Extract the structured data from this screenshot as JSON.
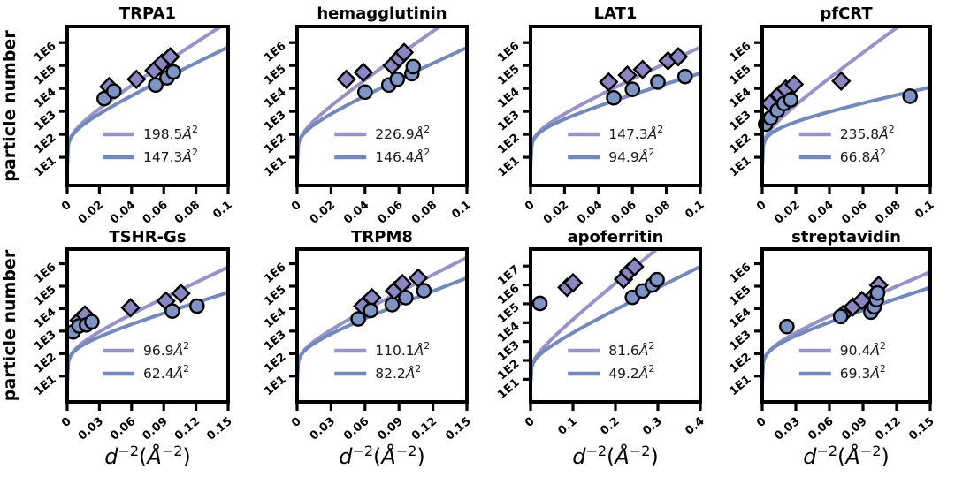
{
  "figure": {
    "ylabel": "particle number",
    "xlabel_text": "d⁻²(Å⁻²)",
    "xlabel_parts": {
      "var": "d",
      "var_sup": "−2",
      "open": "(",
      "unit": "Å",
      "unit_sup": "−2",
      "close": ")"
    },
    "legend_unit": "Å",
    "legend_unit_sup": "2",
    "background": "#ffffff"
  },
  "colors": {
    "purple": "#9792c7",
    "blue": "#7289ba",
    "diamond_fill": "#8a86c1",
    "circle_fill": "#7e94c4",
    "marker_edge": "#000000",
    "axis": "#000000",
    "legend_text": "#1a1a1a"
  },
  "chart_data": [
    {
      "type": "scatter",
      "title": "TRPA1",
      "row": 0,
      "col": 0,
      "x_max": 0.1,
      "x_tick_values": [
        0,
        0.02,
        0.04,
        0.06,
        0.08,
        0.1
      ],
      "x_ticks": [
        "0",
        "0.02",
        "0.04",
        "0.06",
        "0.08",
        "0.1"
      ],
      "y_ticks": [
        "1E1",
        "1E2",
        "1E3",
        "1E4",
        "1E5",
        "1E6"
      ],
      "y_exp_range": [
        -0.23,
        6.7
      ],
      "curve_model": {
        "formula": "log10(N) = c0 + 0.5*log10(x) + B/(2*ln10)*x",
        "c0": 3.1
      },
      "legend": [
        {
          "value": "198.5",
          "label": "198.5Å²",
          "b_factor": 198.5,
          "color_key": "purple"
        },
        {
          "value": "147.3",
          "label": "147.3Å²",
          "b_factor": 147.3,
          "color_key": "blue"
        }
      ],
      "series": [
        {
          "name": "diamonds",
          "marker": "diamond",
          "points": [
            [
              0.026,
              12000
            ],
            [
              0.043,
              25000
            ],
            [
              0.054,
              60000
            ],
            [
              0.059,
              130000
            ],
            [
              0.064,
              240000
            ]
          ]
        },
        {
          "name": "circles",
          "marker": "circle",
          "points": [
            [
              0.023,
              3600
            ],
            [
              0.029,
              7600
            ],
            [
              0.055,
              14000
            ],
            [
              0.062,
              29000
            ],
            [
              0.066,
              52000
            ]
          ]
        }
      ]
    },
    {
      "type": "scatter",
      "title": "hemagglutinin",
      "row": 0,
      "col": 1,
      "x_max": 0.1,
      "x_tick_values": [
        0,
        0.02,
        0.04,
        0.06,
        0.08,
        0.1
      ],
      "x_ticks": [
        "0",
        "0.02",
        "0.04",
        "0.06",
        "0.08",
        "0.1"
      ],
      "y_ticks": [
        "1E1",
        "1E2",
        "1E3",
        "1E4",
        "1E5",
        "1E6"
      ],
      "y_exp_range": [
        -0.23,
        6.7
      ],
      "curve_model": {
        "formula": "log10(N) = c0 + 0.5*log10(x) + B/(2*ln10)*x",
        "c0": 3.1
      },
      "legend": [
        {
          "value": "226.9",
          "label": "226.9Å²",
          "b_factor": 226.9,
          "color_key": "purple"
        },
        {
          "value": "146.4",
          "label": "146.4Å²",
          "b_factor": 146.4,
          "color_key": "blue"
        }
      ],
      "series": [
        {
          "name": "diamonds",
          "marker": "diamond",
          "points": [
            [
              0.029,
              25000
            ],
            [
              0.039,
              50000
            ],
            [
              0.056,
              100000
            ],
            [
              0.06,
              210000
            ],
            [
              0.063,
              370000
            ]
          ]
        },
        {
          "name": "circles",
          "marker": "circle",
          "points": [
            [
              0.04,
              6900
            ],
            [
              0.054,
              14000
            ],
            [
              0.059,
              25000
            ],
            [
              0.0676,
              44000
            ],
            [
              0.0684,
              89000
            ]
          ]
        }
      ]
    },
    {
      "type": "scatter",
      "title": "LAT1",
      "row": 0,
      "col": 2,
      "x_max": 0.1,
      "x_tick_values": [
        0,
        0.02,
        0.04,
        0.06,
        0.08,
        0.1
      ],
      "x_ticks": [
        "0",
        "0.02",
        "0.04",
        "0.06",
        "0.08",
        "0.1"
      ],
      "y_ticks": [
        "1E1",
        "1E2",
        "1E3",
        "1E4",
        "1E5",
        "1E6"
      ],
      "y_exp_range": [
        -0.23,
        6.7
      ],
      "curve_model": {
        "formula": "log10(N) = c0 + 0.5*log10(x) + B/(2*ln10)*x",
        "c0": 3.1
      },
      "legend": [
        {
          "value": "147.3",
          "label": "147.3Å²",
          "b_factor": 147.3,
          "color_key": "purple"
        },
        {
          "value": "94.9",
          "label": "94.9Å²",
          "b_factor": 94.9,
          "color_key": "blue"
        }
      ],
      "series": [
        {
          "name": "diamonds",
          "marker": "diamond",
          "points": [
            [
              0.046,
              19000
            ],
            [
              0.057,
              38000
            ],
            [
              0.066,
              67000
            ],
            [
              0.081,
              160000
            ],
            [
              0.087,
              240000
            ]
          ]
        },
        {
          "name": "circles",
          "marker": "circle",
          "points": [
            [
              0.049,
              3900
            ],
            [
              0.06,
              9100
            ],
            [
              0.075,
              19000
            ],
            [
              0.091,
              33000
            ]
          ]
        }
      ]
    },
    {
      "type": "scatter",
      "title": "pfCRT",
      "row": 0,
      "col": 3,
      "x_max": 0.1,
      "x_tick_values": [
        0,
        0.02,
        0.04,
        0.06,
        0.08,
        0.1
      ],
      "x_ticks": [
        "0",
        "0.02",
        "0.04",
        "0.06",
        "0.08",
        "0.1"
      ],
      "y_ticks": [
        "1E1",
        "1E2",
        "1E3",
        "1E4",
        "1E5",
        "1E6"
      ],
      "y_exp_range": [
        -0.23,
        6.7
      ],
      "curve_model": {
        "formula": "log10(N) = c0 + 0.5*log10(x) + B/(2*ln10)*x",
        "c0": 3.1
      },
      "legend": [
        {
          "value": "235.8",
          "label": "235.8Å²",
          "b_factor": 235.8,
          "color_key": "purple"
        },
        {
          "value": "66.8",
          "label": "66.8Å²",
          "b_factor": 66.8,
          "color_key": "blue"
        }
      ],
      "series": [
        {
          "name": "diamonds",
          "marker": "diamond",
          "points": [
            [
              0.0045,
              2200
            ],
            [
              0.01,
              5300
            ],
            [
              0.014,
              9500
            ],
            [
              0.019,
              15000
            ],
            [
              0.047,
              21000
            ]
          ]
        },
        {
          "name": "circles",
          "marker": "circle",
          "points": [
            [
              0.002,
              280
            ],
            [
              0.005,
              520
            ],
            [
              0.009,
              1100
            ],
            [
              0.013,
              2200
            ],
            [
              0.017,
              3200
            ],
            [
              0.088,
              4600
            ]
          ]
        }
      ]
    },
    {
      "type": "scatter",
      "title": "TSHR-Gs",
      "row": 1,
      "col": 0,
      "x_max": 0.15,
      "x_tick_values": [
        0,
        0.03,
        0.06,
        0.09,
        0.12,
        0.15
      ],
      "x_ticks": [
        "0",
        "0.03",
        "0.06",
        "0.09",
        "0.12",
        "0.15"
      ],
      "y_ticks": [
        "1E1",
        "1E2",
        "1E3",
        "1E4",
        "1E5",
        "1E6"
      ],
      "y_exp_range": [
        -0.15,
        6.65
      ],
      "curve_model": {
        "formula": "log10(N) = c0 + 0.5*log10(x) + B/(2*ln10)*x",
        "c0": 3.1
      },
      "legend": [
        {
          "value": "96.9",
          "label": "96.9Å²",
          "b_factor": 96.9,
          "color_key": "purple"
        },
        {
          "value": "62.4",
          "label": "62.4Å²",
          "b_factor": 62.4,
          "color_key": "blue"
        }
      ],
      "series": [
        {
          "name": "diamonds",
          "marker": "diamond",
          "points": [
            [
              0.011,
              3000
            ],
            [
              0.0165,
              5300
            ],
            [
              0.059,
              11000
            ],
            [
              0.092,
              22000
            ],
            [
              0.106,
              48000
            ]
          ]
        },
        {
          "name": "circles",
          "marker": "circle",
          "points": [
            [
              0.0055,
              920
            ],
            [
              0.011,
              1700
            ],
            [
              0.018,
              1900
            ],
            [
              0.023,
              2600
            ],
            [
              0.098,
              7800
            ],
            [
              0.121,
              13000
            ]
          ]
        }
      ]
    },
    {
      "type": "scatter",
      "title": "TRPM8",
      "row": 1,
      "col": 1,
      "x_max": 0.15,
      "x_tick_values": [
        0,
        0.03,
        0.06,
        0.09,
        0.12,
        0.15
      ],
      "x_ticks": [
        "0",
        "0.03",
        "0.06",
        "0.09",
        "0.12",
        "0.15"
      ],
      "y_ticks": [
        "1E1",
        "1E2",
        "1E3",
        "1E4",
        "1E5",
        "1E6"
      ],
      "y_exp_range": [
        -0.15,
        6.65
      ],
      "curve_model": {
        "formula": "log10(N) = c0 + 0.5*log10(x) + B/(2*ln10)*x",
        "c0": 3.1
      },
      "legend": [
        {
          "value": "110.1",
          "label": "110.1Å²",
          "b_factor": 110.1,
          "color_key": "purple"
        },
        {
          "value": "82.2",
          "label": "82.2Å²",
          "b_factor": 82.2,
          "color_key": "blue"
        }
      ],
      "series": [
        {
          "name": "diamonds",
          "marker": "diamond",
          "points": [
            [
              0.058,
              13000
            ],
            [
              0.066,
              31000
            ],
            [
              0.086,
              63000
            ],
            [
              0.093,
              130000
            ],
            [
              0.107,
              230000
            ]
          ]
        },
        {
          "name": "circles",
          "marker": "circle",
          "points": [
            [
              0.054,
              3500
            ],
            [
              0.065,
              8300
            ],
            [
              0.084,
              15000
            ],
            [
              0.096,
              31000
            ],
            [
              0.112,
              63000
            ]
          ]
        }
      ]
    },
    {
      "type": "scatter",
      "title": "apoferritin",
      "row": 1,
      "col": 2,
      "x_max": 0.4,
      "x_tick_values": [
        0,
        0.1,
        0.2,
        0.3,
        0.4
      ],
      "x_ticks": [
        "0",
        "0.1",
        "0.2",
        "0.3",
        "0.4"
      ],
      "y_ticks": [
        "1E1",
        "1E2",
        "1E3",
        "1E4",
        "1E5",
        "1E6",
        "1E7"
      ],
      "y_exp_range": [
        -0.2,
        7.9
      ],
      "curve_model": {
        "formula": "log10(N) = c0 + 0.5*log10(x) + B/(2*ln10)*x",
        "c0": 2.9
      },
      "legend": [
        {
          "value": "81.6",
          "label": "81.6Å²",
          "b_factor": 81.6,
          "color_key": "purple"
        },
        {
          "value": "49.2",
          "label": "49.2Å²",
          "b_factor": 49.2,
          "color_key": "blue"
        }
      ],
      "series": [
        {
          "name": "diamonds",
          "marker": "diamond",
          "points": [
            [
              0.086,
              740000
            ],
            [
              0.1,
              1300000
            ],
            [
              0.219,
              2000000
            ],
            [
              0.231,
              4800000
            ],
            [
              0.245,
              9200000
            ]
          ]
        },
        {
          "name": "circles",
          "marker": "circle",
          "points": [
            [
              0.022,
              105000
            ],
            [
              0.24,
              220000
            ],
            [
              0.264,
              480000
            ],
            [
              0.287,
              1000000
            ],
            [
              0.298,
              1900000
            ]
          ]
        }
      ]
    },
    {
      "type": "scatter",
      "title": "streptavidin",
      "row": 1,
      "col": 3,
      "x_max": 0.15,
      "x_tick_values": [
        0,
        0.03,
        0.06,
        0.09,
        0.12,
        0.15
      ],
      "x_ticks": [
        "0",
        "0.03",
        "0.06",
        "0.09",
        "0.12",
        "0.15"
      ],
      "y_ticks": [
        "1E1",
        "1E2",
        "1E3",
        "1E4",
        "1E5",
        "1E6"
      ],
      "y_exp_range": [
        -0.15,
        6.65
      ],
      "curve_model": {
        "formula": "log10(N) = c0 + 0.5*log10(x) + B/(2*ln10)*x",
        "c0": 3.1
      },
      "legend": [
        {
          "value": "90.4",
          "label": "90.4Å²",
          "b_factor": 90.4,
          "color_key": "purple"
        },
        {
          "value": "69.3",
          "label": "69.3Å²",
          "b_factor": 69.3,
          "color_key": "blue"
        }
      ],
      "series": [
        {
          "name": "diamonds",
          "marker": "diamond",
          "points": [
            [
              0.072,
              5500
            ],
            [
              0.081,
              12000
            ],
            [
              0.089,
              23000
            ],
            [
              0.1,
              40000
            ],
            [
              0.104,
              110000
            ]
          ]
        },
        {
          "name": "circles",
          "marker": "circle",
          "points": [
            [
              0.022,
              1600
            ],
            [
              0.07,
              4500
            ],
            [
              0.097,
              7000
            ],
            [
              0.1,
              12000
            ],
            [
              0.102,
              25000
            ],
            [
              0.103,
              50000
            ]
          ]
        }
      ]
    }
  ]
}
